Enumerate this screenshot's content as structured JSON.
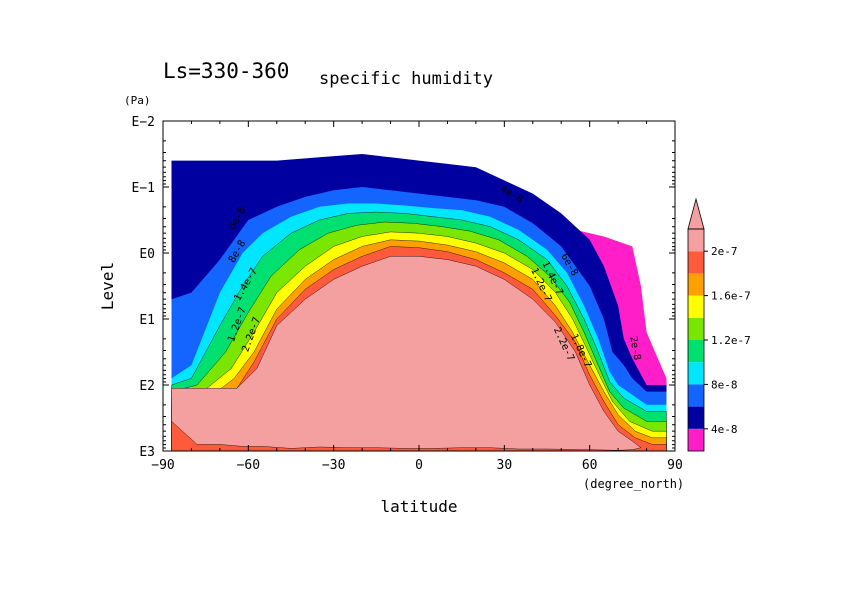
{
  "chart_data": {
    "type": "contour",
    "title_prefix": "Ls=330-360",
    "title_main": "specific humidity",
    "xlabel": "latitude",
    "x_unit": "(degree_north)",
    "ylabel": "Level",
    "y_unit": "(Pa)",
    "xlim": [
      -90,
      90
    ],
    "x_ticks": [
      -90,
      -60,
      -30,
      0,
      30,
      60,
      90
    ],
    "x_tick_labels": [
      "−90",
      "−60",
      "−30",
      "0",
      "30",
      "60",
      "90"
    ],
    "y_log10_range": [
      -2,
      3
    ],
    "y_ticks_log10": [
      -2,
      -1,
      0,
      1,
      2,
      3
    ],
    "y_tick_labels": [
      "E−2",
      "E−1",
      "E0",
      "E1",
      "E2",
      "E3"
    ],
    "levels": [
      4e-08,
      8e-08,
      1.2e-07,
      1.6e-07,
      2e-07
    ],
    "colorbar_labels": [
      "4e-8",
      "8e-8",
      "1.2e-7",
      "1.6e-7",
      "2e-7"
    ],
    "colors": [
      "#ff1ec8",
      "#0000a0",
      "#1464ff",
      "#00e6ff",
      "#00e070",
      "#7ae600",
      "#ffff00",
      "#ffa000",
      "#ff5a3c",
      "#f5a0a0"
    ],
    "bands": [
      {
        "name": "lt-2e-8",
        "color": "#ff1ec8",
        "lat": [
          -25,
          -15,
          -5,
          5,
          15,
          25,
          35,
          45,
          55,
          65,
          75,
          78,
          80,
          84,
          87,
          87,
          -25
        ],
        "log10p": [
          -0.4,
          -0.55,
          -0.6,
          -0.6,
          -0.55,
          -0.5,
          -0.5,
          -0.45,
          -0.35,
          -0.25,
          -0.1,
          0.5,
          1.2,
          1.6,
          1.9,
          3,
          3
        ]
      },
      {
        "name": "2e-8-to-4e-8",
        "color": "#0000a0",
        "lat": [
          -87,
          -70,
          -50,
          -35,
          -20,
          -10,
          0,
          10,
          20,
          30,
          40,
          50,
          60,
          65,
          70,
          72,
          75,
          80,
          87
        ],
        "log10p": [
          -1.4,
          -1.4,
          -1.4,
          -1.45,
          -1.5,
          -1.45,
          -1.4,
          -1.35,
          -1.3,
          -1.1,
          -0.9,
          -0.6,
          -0.2,
          0.2,
          0.8,
          1.3,
          1.6,
          2.0,
          2.0
        ]
      },
      {
        "name": "4e-8-to-8e-8",
        "color": "#1464ff",
        "lat": [
          -87,
          -80,
          -70,
          -60,
          -50,
          -40,
          -30,
          -20,
          -10,
          0,
          10,
          20,
          30,
          40,
          50,
          55,
          60,
          65,
          68,
          72,
          75,
          80,
          87
        ],
        "log10p": [
          0.7,
          0.6,
          0.1,
          -0.5,
          -0.7,
          -0.85,
          -0.95,
          -1.0,
          -0.95,
          -0.9,
          -0.85,
          -0.8,
          -0.7,
          -0.45,
          -0.1,
          0.2,
          0.5,
          1.0,
          1.5,
          1.7,
          1.9,
          2.1,
          2.1
        ]
      },
      {
        "name": "8e-8-to-1.2e-7",
        "color": "#00e6ff",
        "lat": [
          -87,
          -80,
          -70,
          -62,
          -55,
          -45,
          -35,
          -25,
          -15,
          -5,
          5,
          15,
          25,
          35,
          45,
          52,
          58,
          63,
          67,
          70,
          80,
          87
        ],
        "log10p": [
          1.9,
          1.7,
          0.6,
          0,
          -0.3,
          -0.55,
          -0.7,
          -0.75,
          -0.75,
          -0.72,
          -0.68,
          -0.65,
          -0.55,
          -0.35,
          -0.05,
          0.3,
          0.8,
          1.3,
          1.8,
          2.0,
          2.3,
          2.3
        ]
      },
      {
        "name": "1.2e-7-to-1.6e-7",
        "color": "#00e070",
        "lat": [
          -87,
          -80,
          -70,
          -62,
          -55,
          -45,
          -35,
          -25,
          -15,
          -5,
          5,
          15,
          25,
          35,
          45,
          52,
          58,
          63,
          67,
          72,
          80,
          87
        ],
        "log10p": [
          2.0,
          1.9,
          1.1,
          0.5,
          0.05,
          -0.3,
          -0.5,
          -0.6,
          -0.62,
          -0.6,
          -0.55,
          -0.5,
          -0.4,
          -0.2,
          0.1,
          0.5,
          1.0,
          1.5,
          1.95,
          2.2,
          2.4,
          2.4
        ]
      },
      {
        "name": "1.6e-7-to-2e-7",
        "color": "#7ae600",
        "lat": [
          -87,
          -78,
          -68,
          -60,
          -52,
          -42,
          -32,
          -22,
          -12,
          -2,
          8,
          18,
          28,
          38,
          46,
          53,
          58,
          63,
          67,
          72,
          80,
          87
        ],
        "log10p": [
          2.1,
          2.0,
          1.5,
          0.9,
          0.35,
          -0.05,
          -0.3,
          -0.42,
          -0.47,
          -0.45,
          -0.4,
          -0.33,
          -0.2,
          0.05,
          0.35,
          0.75,
          1.2,
          1.7,
          2.1,
          2.35,
          2.55,
          2.55
        ]
      },
      {
        "name": "2e-7-to-2.4e-7",
        "color": "#ffff00",
        "lat": [
          -87,
          -76,
          -66,
          -58,
          -50,
          -40,
          -30,
          -20,
          -10,
          0,
          10,
          20,
          30,
          40,
          48,
          54,
          59,
          64,
          68,
          74,
          82,
          87
        ],
        "log10p": [
          2.2,
          2.1,
          1.75,
          1.2,
          0.6,
          0.2,
          -0.1,
          -0.25,
          -0.32,
          -0.3,
          -0.25,
          -0.15,
          0,
          0.25,
          0.6,
          1.0,
          1.45,
          1.9,
          2.25,
          2.55,
          2.7,
          2.7
        ]
      },
      {
        "name": "2.4e-7-to-2.8e-7",
        "color": "#ffa000",
        "lat": [
          -87,
          -74,
          -65,
          -58,
          -50,
          -40,
          -30,
          -20,
          -10,
          0,
          10,
          20,
          30,
          40,
          48,
          54,
          60,
          65,
          70,
          76,
          82,
          87
        ],
        "log10p": [
          2.3,
          2.2,
          1.9,
          1.5,
          0.85,
          0.4,
          0.1,
          -0.1,
          -0.2,
          -0.18,
          -0.12,
          -0.02,
          0.15,
          0.4,
          0.8,
          1.2,
          1.7,
          2.1,
          2.45,
          2.7,
          2.8,
          2.8
        ]
      },
      {
        "name": "2.8e-7-to-3.2e-7",
        "color": "#ff5a3c",
        "lat": [
          -87,
          -72,
          -64,
          -58,
          -50,
          -40,
          -30,
          -20,
          -10,
          0,
          10,
          20,
          30,
          40,
          48,
          55,
          60,
          65,
          70,
          76,
          82,
          87
        ],
        "log10p": [
          2.35,
          2.25,
          2.05,
          1.65,
          1.0,
          0.55,
          0.25,
          0.05,
          -0.1,
          -0.08,
          -0.02,
          0.1,
          0.3,
          0.55,
          0.95,
          1.35,
          1.85,
          2.25,
          2.6,
          2.8,
          2.9,
          2.9
        ]
      },
      {
        "name": "gt-3.2e-7",
        "color": "#f5a0a0",
        "lat": [
          -87,
          -72,
          -64,
          -57,
          -50,
          -40,
          -30,
          -20,
          -10,
          0,
          10,
          20,
          30,
          40,
          48,
          55,
          60,
          65,
          70,
          75,
          78,
          75,
          70,
          60,
          45,
          35,
          25,
          15,
          5,
          -5,
          -15,
          -25,
          -35,
          -45,
          -55,
          -62,
          -70,
          -78,
          -87
        ],
        "log10p": [
          2.05,
          2.05,
          2.05,
          1.75,
          1.1,
          0.7,
          0.4,
          0.2,
          0.05,
          0.05,
          0.1,
          0.2,
          0.4,
          0.7,
          1.05,
          1.5,
          2.0,
          2.4,
          2.7,
          2.85,
          2.95,
          2.98,
          2.99,
          2.98,
          2.97,
          2.97,
          2.95,
          2.95,
          2.96,
          2.96,
          2.95,
          2.95,
          2.94,
          2.96,
          2.93,
          2.93,
          2.9,
          2.9,
          2.55
        ]
      }
    ],
    "contour_labels": [
      {
        "text": "4e-8",
        "lat": 32,
        "log10p": -0.85,
        "rotate": 30
      },
      {
        "text": "2e-8",
        "lat": 75,
        "log10p": 1.45,
        "rotate": 80
      },
      {
        "text": "6e-8",
        "lat": -63,
        "log10p": -0.5,
        "rotate": -60
      },
      {
        "text": "8e-8",
        "lat": -63,
        "log10p": 0.0,
        "rotate": -60
      },
      {
        "text": "1.4e-7",
        "lat": -60,
        "log10p": 0.5,
        "rotate": -60
      },
      {
        "text": "1.2e-7",
        "lat": -63,
        "log10p": 1.1,
        "rotate": -70
      },
      {
        "text": "2.2e-7",
        "lat": -58,
        "log10p": 1.25,
        "rotate": -70
      },
      {
        "text": "6e-8",
        "lat": 52,
        "log10p": 0.2,
        "rotate": 60
      },
      {
        "text": "1.4e-7",
        "lat": 46,
        "log10p": 0.4,
        "rotate": 65
      },
      {
        "text": "1.2e-7",
        "lat": 42,
        "log10p": 0.5,
        "rotate": 65
      },
      {
        "text": "2.2e-7",
        "lat": 50,
        "log10p": 1.4,
        "rotate": 65
      },
      {
        "text": "1.8e-7",
        "lat": 56,
        "log10p": 1.5,
        "rotate": 65
      }
    ]
  }
}
